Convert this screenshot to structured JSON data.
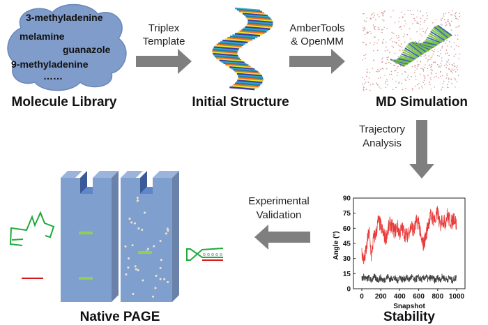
{
  "molecule_library": {
    "title": "Molecule Library",
    "items": [
      "3-methyladenine",
      "melamine",
      "guanazole",
      "9-methyladenine",
      "……"
    ]
  },
  "steps": {
    "step1": [
      "Triplex",
      "Template"
    ],
    "step2": [
      "AmberTools",
      "& OpenMM"
    ],
    "step3": [
      "Trajectory",
      "Analysis"
    ],
    "step4": [
      "Experimental",
      "Validation"
    ]
  },
  "labels": {
    "initial_structure": "Initial Structure",
    "md_simulation": "MD Simulation",
    "stability": "Stability",
    "native_page": "Native PAGE"
  },
  "colors": {
    "cloud": "#7f9ccb",
    "arrow": "#7f7f7f",
    "gel": "#7f9fcf",
    "band": "#8fd14f",
    "red_series": "#e83a3a",
    "gray_series": "#404040",
    "strand_green": "#1faa3c",
    "strand_red": "#d61a1a"
  },
  "chart_data": {
    "type": "line",
    "xlabel": "Snapshot",
    "ylabel": "Angle (°)",
    "xlim": [
      0,
      1000
    ],
    "ylim": [
      0,
      90
    ],
    "xticks": [
      "0",
      "200",
      "400",
      "600",
      "800",
      "1000"
    ],
    "yticks": [
      "0",
      "15",
      "30",
      "45",
      "60",
      "75",
      "90"
    ],
    "grid": false,
    "x": [
      0,
      25,
      50,
      75,
      100,
      125,
      150,
      175,
      200,
      225,
      250,
      275,
      300,
      325,
      350,
      375,
      400,
      425,
      450,
      475,
      500,
      525,
      550,
      575,
      600,
      625,
      650,
      675,
      700,
      725,
      750,
      775,
      800,
      825,
      850,
      875,
      900,
      925,
      950,
      975,
      1000
    ],
    "series": [
      {
        "color": "#e83a3a",
        "values": [
          35,
          28,
          40,
          58,
          33,
          50,
          55,
          68,
          62,
          55,
          50,
          58,
          65,
          60,
          57,
          62,
          55,
          60,
          55,
          52,
          58,
          62,
          57,
          66,
          68,
          48,
          44,
          52,
          65,
          72,
          70,
          68,
          76,
          62,
          70,
          65,
          73,
          68,
          66,
          72,
          62
        ]
      },
      {
        "color": "#404040",
        "values": [
          10,
          12,
          9,
          11,
          8,
          12,
          10,
          9,
          11,
          8,
          10,
          12,
          9,
          11,
          10,
          8,
          12,
          9,
          10,
          11,
          9,
          12,
          8,
          10,
          11,
          9,
          10,
          12,
          9,
          11,
          10,
          8,
          11,
          9,
          12,
          10,
          9,
          11,
          8,
          10,
          11
        ]
      }
    ]
  }
}
